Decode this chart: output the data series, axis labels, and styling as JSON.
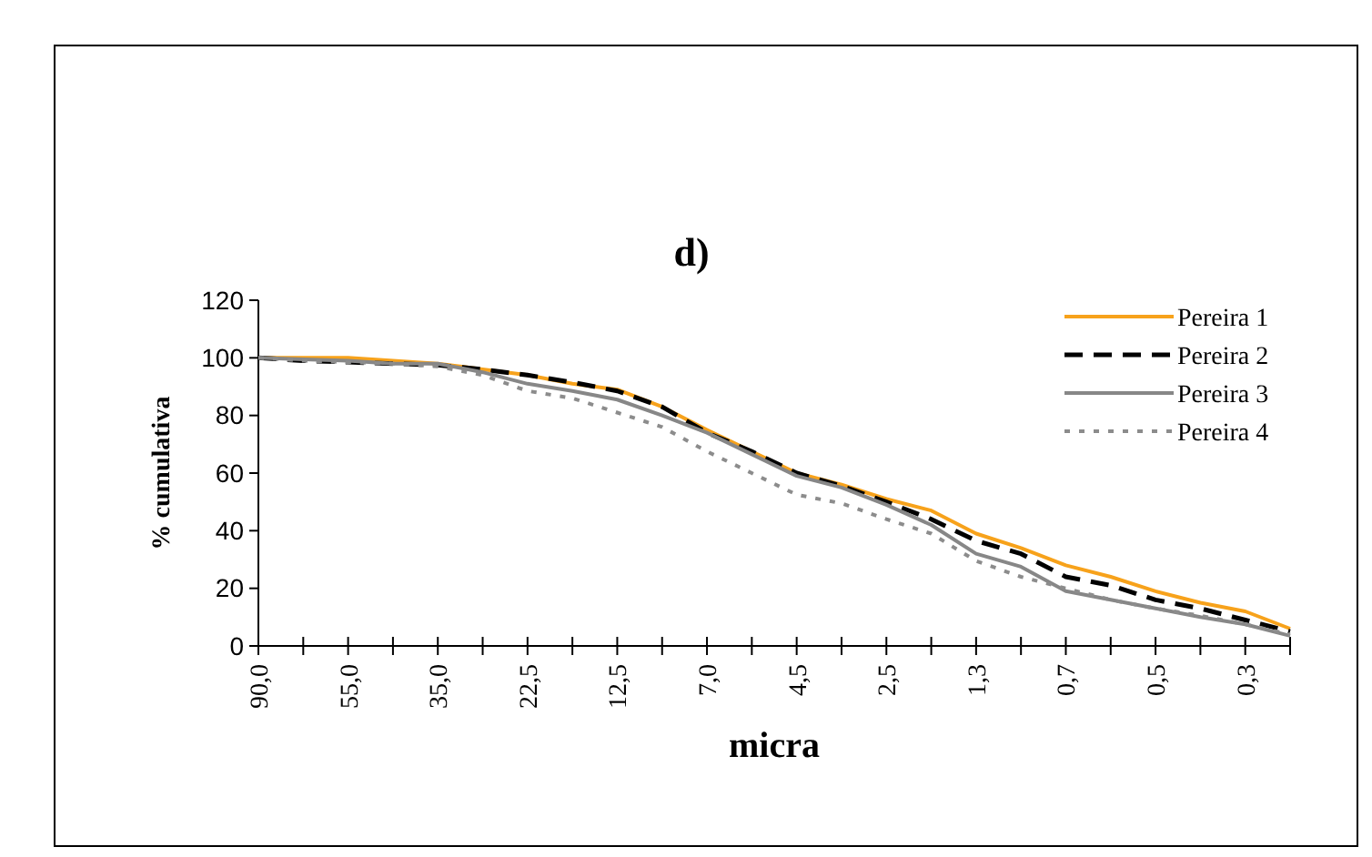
{
  "chart_data": {
    "type": "line",
    "title": "d)",
    "xlabel": "micra",
    "ylabel": "% cumulativa",
    "categories": [
      "90,0",
      null,
      "55,0",
      null,
      "35,0",
      null,
      "22,5",
      null,
      "12,5",
      null,
      "7,0",
      null,
      "4,5",
      null,
      "2,5",
      null,
      "1,3",
      null,
      "0,7",
      null,
      "0,5",
      null,
      "0,3",
      null
    ],
    "ylim": [
      0,
      120
    ],
    "yticks": [
      0,
      20,
      40,
      60,
      80,
      100,
      120
    ],
    "grid": false,
    "legend": "top right",
    "series": [
      {
        "name": "Pereira 1",
        "color": "#f7a21b",
        "line_style": "solid",
        "values": [
          100,
          100,
          100,
          99,
          98,
          96,
          94,
          91,
          89,
          83,
          75,
          67.5,
          60,
          56,
          51,
          47,
          39,
          34,
          28,
          24,
          19,
          15,
          12,
          6
        ]
      },
      {
        "name": "Pereira 2",
        "color": "#000000",
        "line_style": "dashed",
        "values": [
          100,
          99,
          98.5,
          98,
          97.5,
          96,
          94,
          91.5,
          88.5,
          83,
          74,
          67.5,
          60,
          55.5,
          50,
          44,
          36.5,
          32,
          24,
          21,
          16,
          13,
          9,
          5
        ]
      },
      {
        "name": "Pereira 3",
        "color": "#878787",
        "line_style": "solid",
        "values": [
          100,
          99.5,
          99,
          98,
          98,
          95,
          91,
          88.5,
          85.5,
          80,
          74,
          66.5,
          59,
          55,
          49,
          42,
          32,
          27.5,
          19,
          16,
          13,
          10,
          7.5,
          3.5
        ]
      },
      {
        "name": "Pereira 4",
        "color": "#8c8c8c",
        "line_style": "dotted",
        "values": [
          100,
          99,
          98.5,
          98,
          97,
          94,
          88.5,
          86,
          81,
          76,
          67.5,
          60,
          52.5,
          49.5,
          44,
          39,
          29.5,
          24,
          20,
          16,
          13,
          10.5,
          7.5,
          4
        ]
      }
    ]
  }
}
